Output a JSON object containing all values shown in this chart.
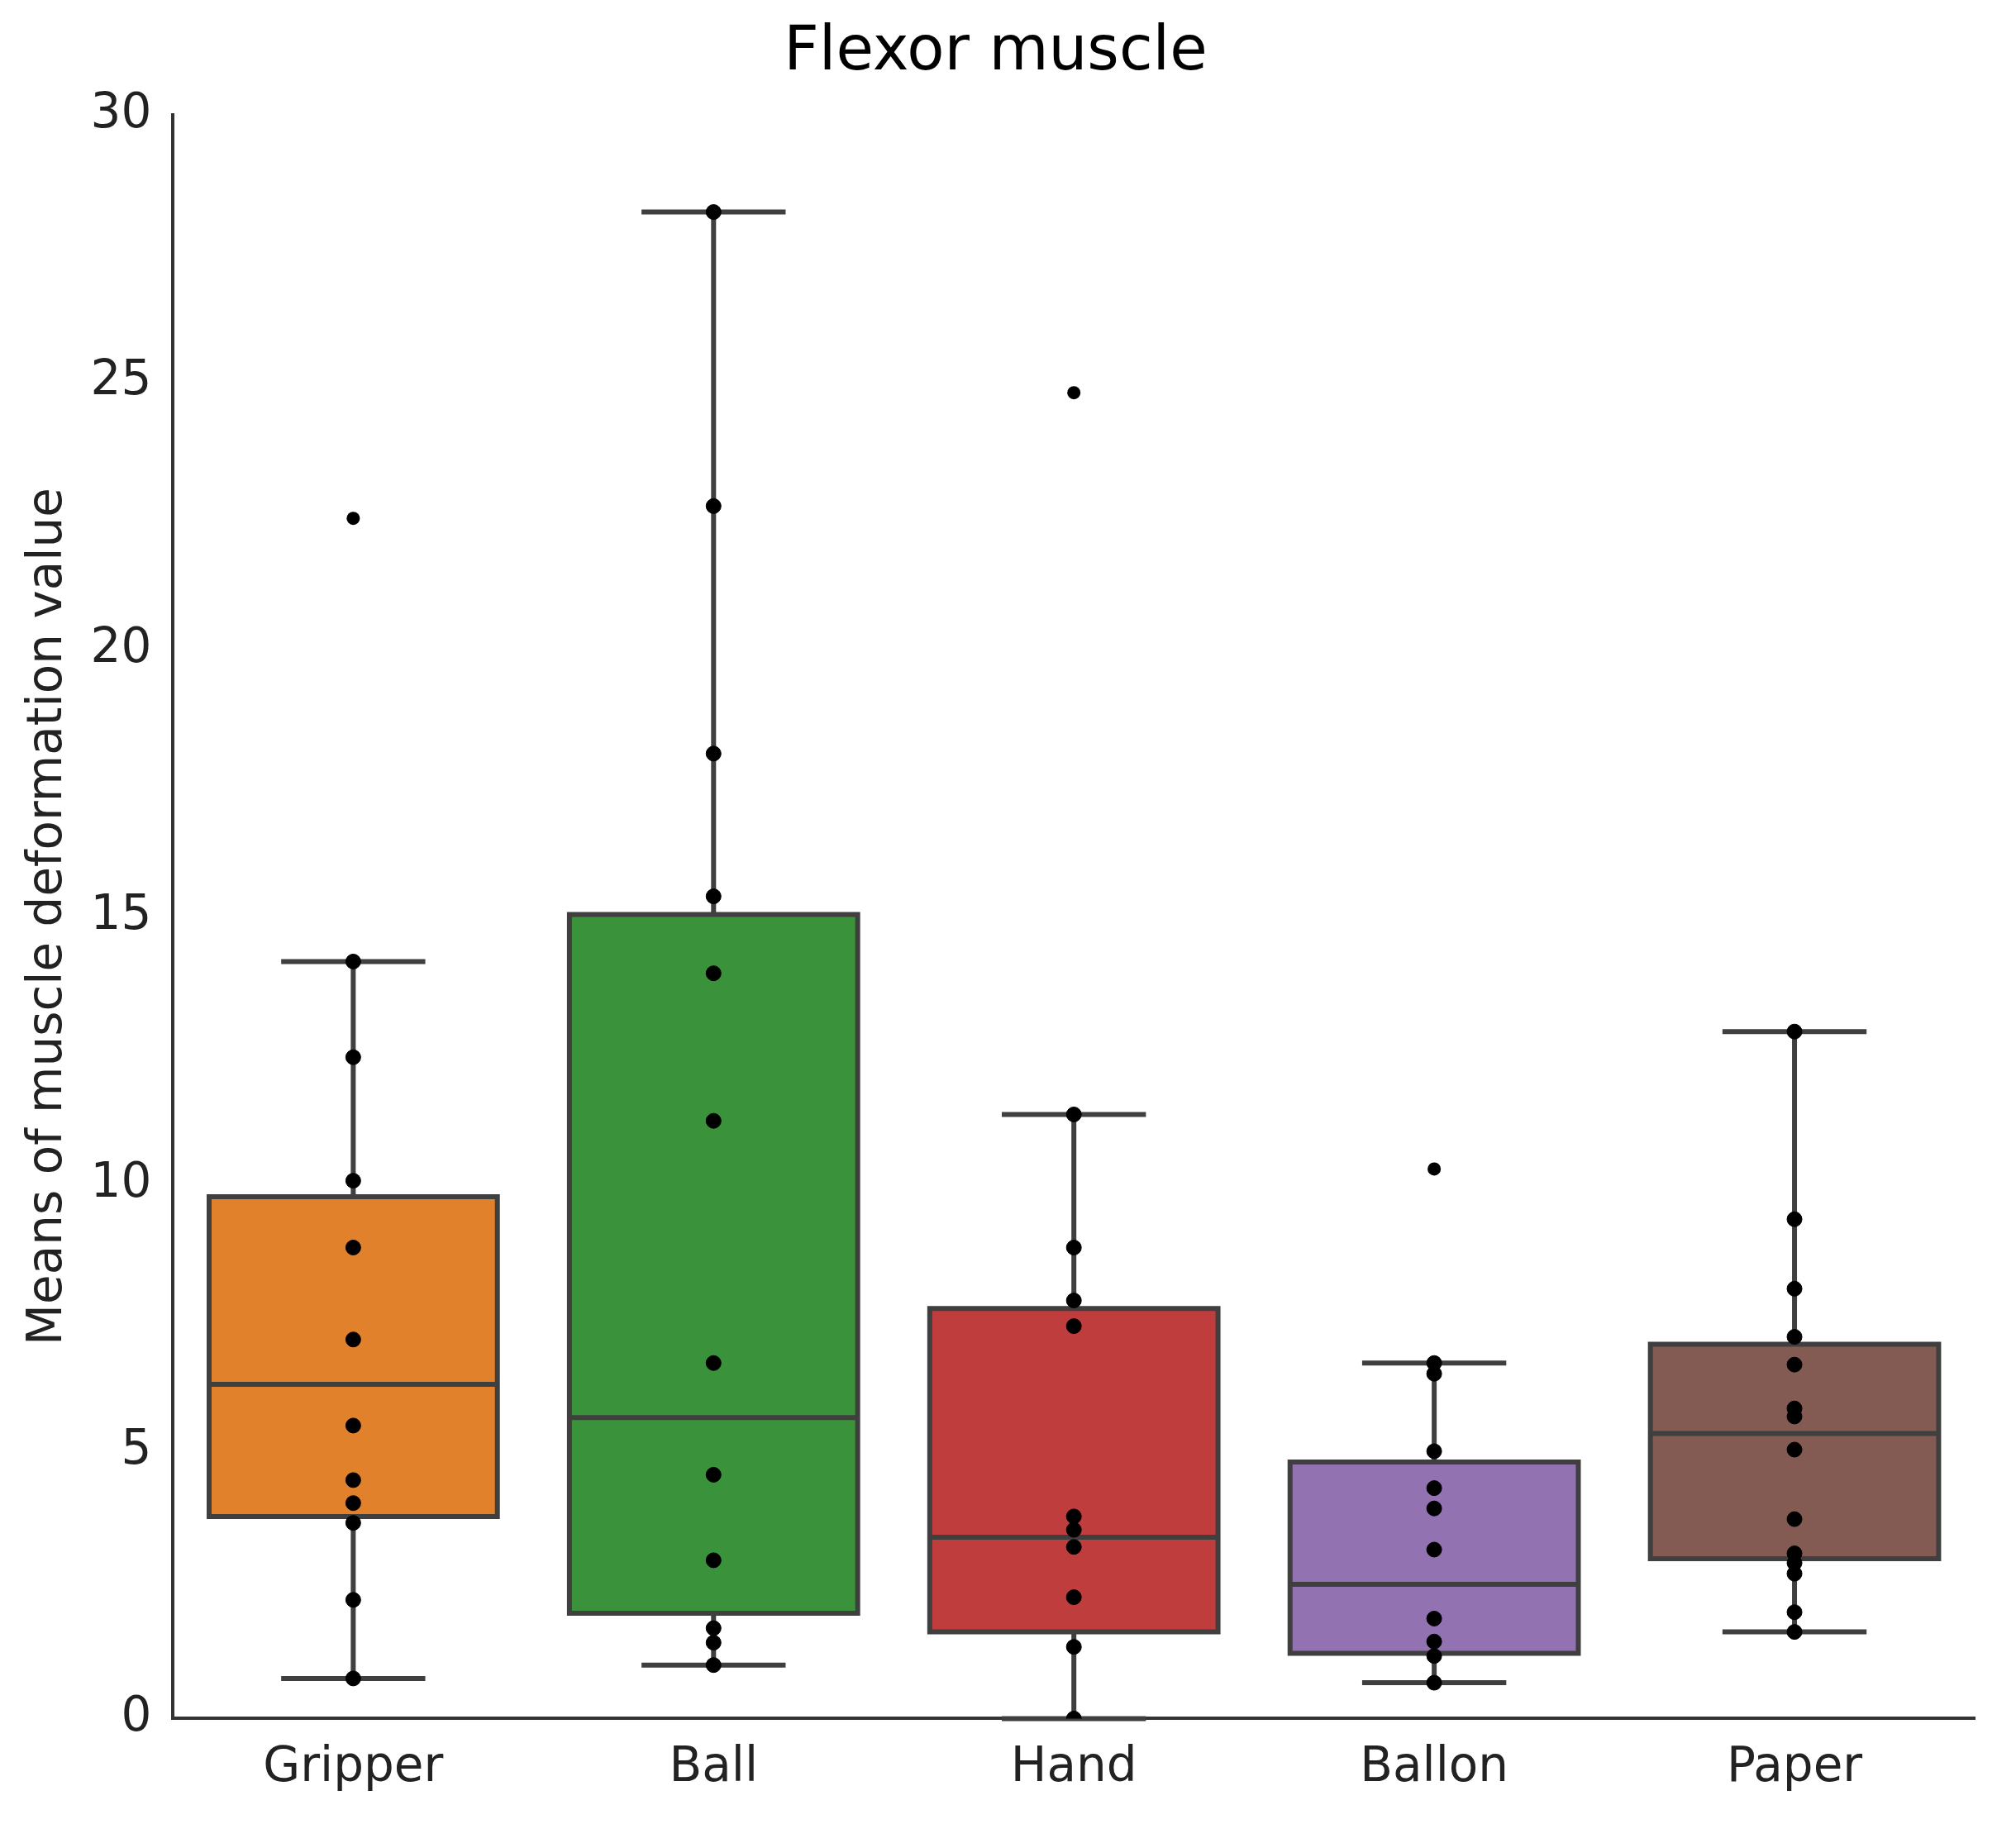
{
  "chart_data": {
    "type": "box",
    "title": "Flexor muscle",
    "ylabel": "Means of muscle deformation value",
    "categories": [
      "Gripper",
      "Ball",
      "Hand",
      "Ballon",
      "Paper"
    ],
    "colors": [
      "#e1812c",
      "#3a923a",
      "#c03d3e",
      "#9372b2",
      "#845b53"
    ],
    "boxes": [
      {
        "low": 0.75,
        "q1": 3.78,
        "median": 6.25,
        "q3": 9.76,
        "high": 14.16,
        "outliers": [
          22.45
        ]
      },
      {
        "low": 1.0,
        "q1": 1.97,
        "median": 5.63,
        "q3": 15.04,
        "high": 28.18
      },
      {
        "low": 0,
        "q1": 1.62,
        "median": 3.39,
        "q3": 7.67,
        "high": 11.3,
        "outliers": [
          24.8
        ]
      },
      {
        "low": 0.67,
        "q1": 1.22,
        "median": 2.51,
        "q3": 4.8,
        "high": 6.65,
        "outliers": [
          10.28
        ]
      },
      {
        "low": 1.62,
        "q1": 2.99,
        "median": 5.33,
        "q3": 7.0,
        "high": 12.85
      }
    ],
    "series": [
      {
        "type": "scatter",
        "color": "#000000",
        "marker": "circle",
        "x": [
          "Gripper",
          "Gripper",
          "Gripper",
          "Gripper",
          "Gripper",
          "Gripper",
          "Gripper",
          "Gripper",
          "Gripper",
          "Gripper",
          "Gripper",
          "Ball",
          "Ball",
          "Ball",
          "Ball",
          "Ball",
          "Ball",
          "Ball",
          "Ball",
          "Ball",
          "Ball",
          "Ball",
          "Ball",
          "Hand",
          "Hand",
          "Hand",
          "Hand",
          "Hand",
          "Hand",
          "Hand",
          "Hand",
          "Hand",
          "Hand",
          "Hand",
          "Ballon",
          "Ballon",
          "Ballon",
          "Ballon",
          "Ballon",
          "Ballon",
          "Ballon",
          "Ballon",
          "Ballon",
          "Ballon",
          "Paper",
          "Paper",
          "Paper",
          "Paper",
          "Paper",
          "Paper",
          "Paper",
          "Paper",
          "Paper",
          "Paper",
          "Paper",
          "Paper",
          "Paper",
          "Paper"
        ],
        "values": [
          14.16,
          12.37,
          10.06,
          8.81,
          7.09,
          5.48,
          4.46,
          4.03,
          3.66,
          2.22,
          0.75,
          28.18,
          22.68,
          18.05,
          15.38,
          13.94,
          11.18,
          6.65,
          4.56,
          2.96,
          1.69,
          1.42,
          1.0,
          11.3,
          8.81,
          7.82,
          7.34,
          3.78,
          3.53,
          3.21,
          2.27,
          null,
          1.34,
          0,
          6.65,
          6.45,
          5.0,
          4.31,
          3.93,
          3.16,
          1.87,
          1.44,
          1.17,
          0.67,
          12.85,
          9.34,
          8.04,
          7.14,
          6.62,
          5.8,
          5.65,
          5.03,
          3.73,
          3.09,
          2.91,
          2.71,
          1.99,
          1.62
        ]
      }
    ],
    "ylim": [
      0,
      30
    ],
    "yticks": [
      0,
      5,
      10,
      15,
      20,
      25,
      30
    ],
    "grid": false,
    "legend": false
  }
}
